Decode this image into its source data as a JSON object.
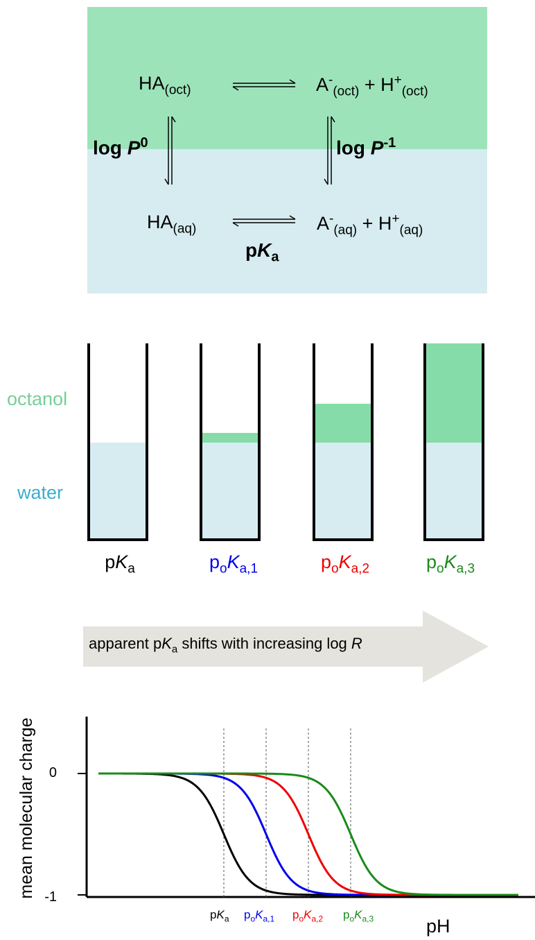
{
  "scheme": {
    "ha_prefix": "HA",
    "oct_sub": "(oct)",
    "aq_sub": "(aq)",
    "a_prefix": "A",
    "minus_sup": "-",
    "plus": " + H",
    "plus_sup": "+",
    "logP": "log ",
    "logP_var": "P",
    "logP0_sup": "0",
    "logP1_sup": "-1",
    "pka_p": "p",
    "pka_K": "K",
    "pka_a": "a"
  },
  "phases": {
    "octanol": "octanol",
    "water": "water"
  },
  "beakers": [
    {
      "p": "p",
      "o": "",
      "K": "K",
      "sub": "a",
      "color": "#000000",
      "octanol_fraction": 0.0
    },
    {
      "p": "p",
      "o": "o",
      "K": "K",
      "sub": "a,1",
      "color": "#0000ee",
      "octanol_fraction": 0.1
    },
    {
      "p": "p",
      "o": "o",
      "K": "K",
      "sub": "a,2",
      "color": "#ee0000",
      "octanol_fraction": 0.4
    },
    {
      "p": "p",
      "o": "o",
      "K": "K",
      "sub": "a,3",
      "color": "#1a8a1a",
      "octanol_fraction": 1.1
    }
  ],
  "arrow_text": {
    "prefix": "apparent p",
    "K": "K",
    "sub": "a",
    "mid": " shifts with increasing log ",
    "R": "R"
  },
  "colors": {
    "octanol": "#9de3ba",
    "water": "#d6ecf1",
    "octanol_beaker": "#86dca8",
    "arrow": "#e4e3dd"
  },
  "chart_data": {
    "type": "line",
    "xlabel": "pH",
    "ylabel": "mean molecular charge",
    "y_ticks": [
      "0",
      "-1"
    ],
    "ylim": [
      -1,
      0
    ],
    "series": [
      {
        "color": "#000000",
        "midpoint_label": "pKa"
      },
      {
        "color": "#0000ee",
        "midpoint_label": "poKa,1"
      },
      {
        "color": "#ee0000",
        "midpoint_label": "poKa,2"
      },
      {
        "color": "#1a8a1a",
        "midpoint_label": "poKa,3"
      }
    ],
    "grid": false
  }
}
